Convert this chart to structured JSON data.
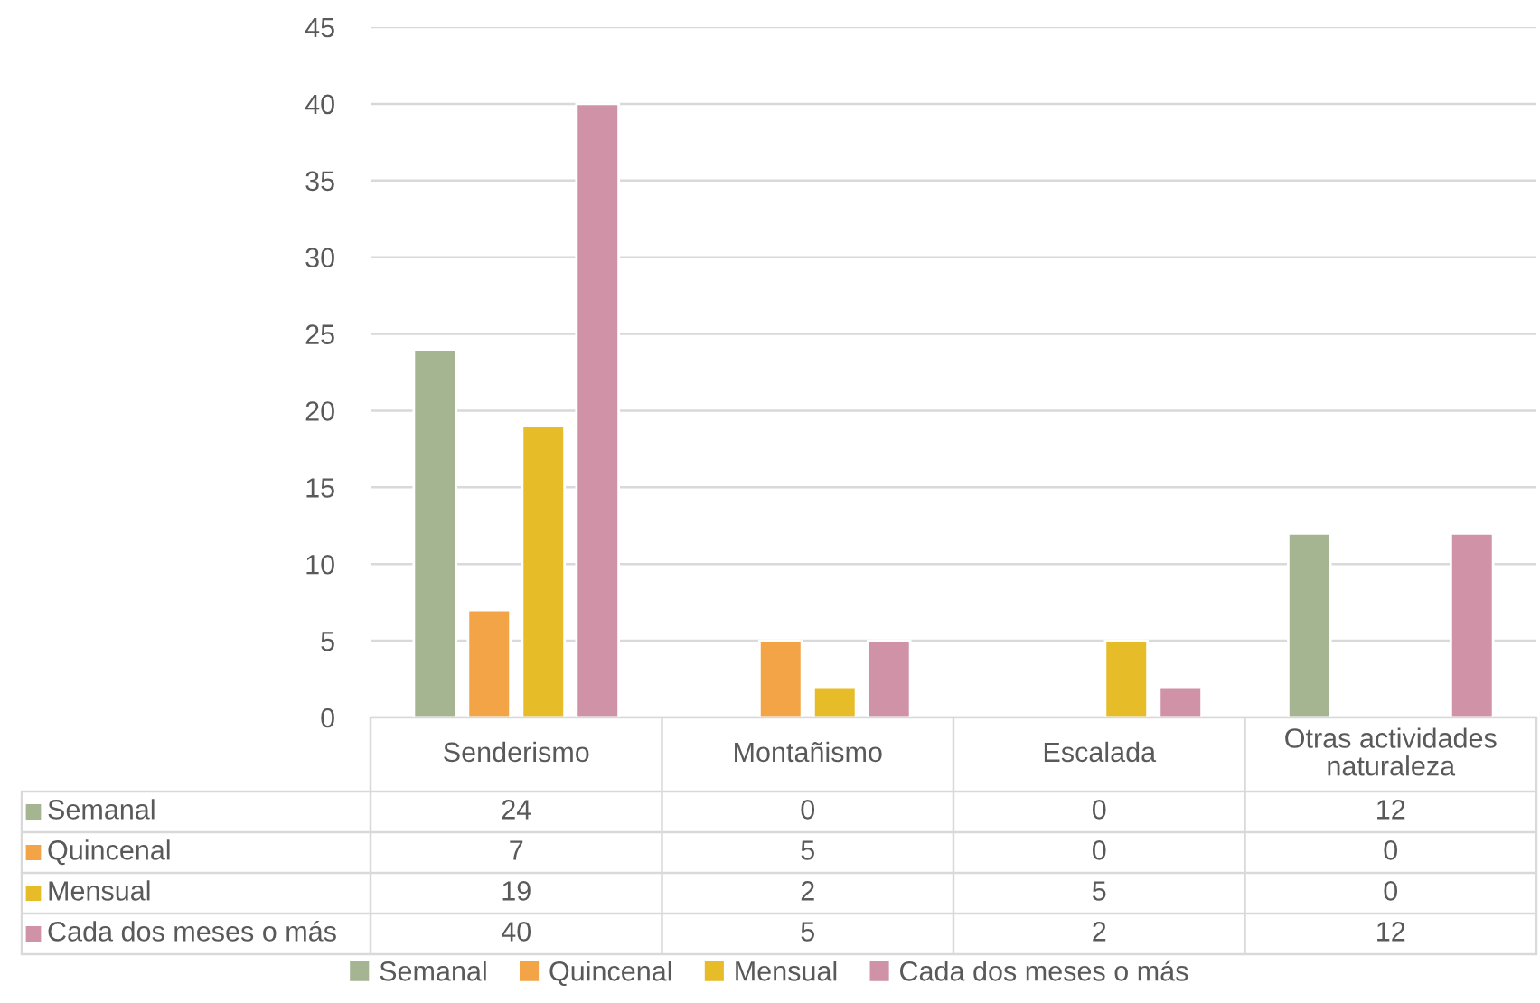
{
  "chart_data": {
    "type": "bar",
    "categories": [
      "Senderismo",
      "Montañismo",
      "Escalada",
      "Otras actividades naturaleza"
    ],
    "series": [
      {
        "name": "Semanal",
        "color": "#a5b592",
        "values": [
          24,
          0,
          0,
          12
        ]
      },
      {
        "name": "Quincenal",
        "color": "#f3a447",
        "values": [
          7,
          5,
          0,
          0
        ]
      },
      {
        "name": "Mensual",
        "color": "#e7bc29",
        "values": [
          19,
          2,
          5,
          0
        ]
      },
      {
        "name": "Cada dos meses o más",
        "color": "#d092a7",
        "values": [
          40,
          5,
          2,
          12
        ]
      }
    ],
    "ylim": [
      0,
      45
    ],
    "yticks": [
      0,
      5,
      10,
      15,
      20,
      25,
      30,
      35,
      40,
      45
    ],
    "grid": "y",
    "legend": "bottom",
    "data_labels": true
  }
}
